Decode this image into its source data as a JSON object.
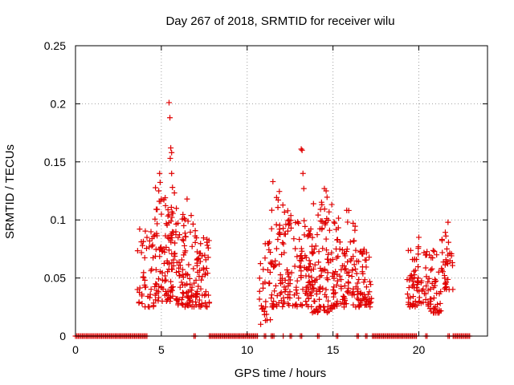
{
  "chart_data": {
    "type": "scatter",
    "title": "Day 267 of 2018, SRMTID for receiver wilu",
    "xlabel": "GPS time / hours",
    "ylabel": "SRMTID / TECUs",
    "xlim": [
      0,
      24
    ],
    "ylim": [
      0,
      0.25
    ],
    "xticks": [
      0,
      5,
      10,
      15,
      20
    ],
    "xtick_labels": [
      "0",
      "5",
      "10",
      "15",
      "20"
    ],
    "yticks": [
      0,
      0.05,
      0.1,
      0.15,
      0.2,
      0.25
    ],
    "ytick_labels": [
      "0",
      "0.05",
      "0.1",
      "0.15",
      "0.2",
      "0.25"
    ],
    "grid": true,
    "marker": "+",
    "series": [
      {
        "name": "SRMTID",
        "color": "#e00000",
        "clusters": [
          {
            "x_range": [
              3.6,
              4.6
            ],
            "y_range": [
              0.025,
              0.095
            ],
            "count": 45
          },
          {
            "x_range": [
              4.6,
              5.3
            ],
            "y_range": [
              0.03,
              0.135
            ],
            "count": 55
          },
          {
            "x_range": [
              5.3,
              5.9
            ],
            "y_range": [
              0.03,
              0.125
            ],
            "count": 60
          },
          {
            "x_range": [
              5.9,
              7.0
            ],
            "y_range": [
              0.025,
              0.105
            ],
            "count": 85
          },
          {
            "x_range": [
              7.0,
              7.8
            ],
            "y_range": [
              0.025,
              0.085
            ],
            "count": 60
          },
          {
            "x_range": [
              10.7,
              11.4
            ],
            "y_range": [
              0.01,
              0.09
            ],
            "count": 35
          },
          {
            "x_range": [
              11.4,
              12.6
            ],
            "y_range": [
              0.025,
              0.13
            ],
            "count": 85
          },
          {
            "x_range": [
              12.6,
              13.8
            ],
            "y_range": [
              0.025,
              0.1
            ],
            "count": 85
          },
          {
            "x_range": [
              13.8,
              15.0
            ],
            "y_range": [
              0.02,
              0.12
            ],
            "count": 95
          },
          {
            "x_range": [
              15.0,
              16.4
            ],
            "y_range": [
              0.025,
              0.11
            ],
            "count": 95
          },
          {
            "x_range": [
              16.4,
              17.3
            ],
            "y_range": [
              0.025,
              0.075
            ],
            "count": 55
          },
          {
            "x_range": [
              19.3,
              20.6
            ],
            "y_range": [
              0.025,
              0.08
            ],
            "count": 75
          },
          {
            "x_range": [
              20.6,
              21.3
            ],
            "y_range": [
              0.02,
              0.075
            ],
            "count": 40
          },
          {
            "x_range": [
              21.3,
              22.0
            ],
            "y_range": [
              0.04,
              0.1
            ],
            "count": 35
          }
        ],
        "outliers": [
          {
            "x": 5.45,
            "y": 0.201
          },
          {
            "x": 5.5,
            "y": 0.188
          },
          {
            "x": 5.55,
            "y": 0.162
          },
          {
            "x": 5.6,
            "y": 0.158
          },
          {
            "x": 5.52,
            "y": 0.153
          },
          {
            "x": 4.9,
            "y": 0.14
          },
          {
            "x": 4.85,
            "y": 0.125
          },
          {
            "x": 5.0,
            "y": 0.118
          },
          {
            "x": 5.6,
            "y": 0.14
          },
          {
            "x": 5.65,
            "y": 0.128
          },
          {
            "x": 6.5,
            "y": 0.118
          },
          {
            "x": 11.5,
            "y": 0.133
          },
          {
            "x": 13.15,
            "y": 0.161
          },
          {
            "x": 13.2,
            "y": 0.16
          },
          {
            "x": 13.25,
            "y": 0.14
          },
          {
            "x": 13.3,
            "y": 0.127
          },
          {
            "x": 14.5,
            "y": 0.127
          },
          {
            "x": 14.6,
            "y": 0.125
          },
          {
            "x": 20.0,
            "y": 0.085
          },
          {
            "x": 21.7,
            "y": 0.098
          }
        ],
        "zero_spans": [
          [
            0.0,
            4.2
          ],
          [
            6.9,
            7.0
          ],
          [
            7.8,
            10.6
          ],
          [
            11.0,
            11.1
          ],
          [
            11.4,
            11.6
          ],
          [
            12.1,
            12.15
          ],
          [
            12.5,
            12.6
          ],
          [
            13.1,
            13.2
          ],
          [
            14.1,
            14.2
          ],
          [
            15.2,
            15.3
          ],
          [
            16.4,
            16.5
          ],
          [
            16.9,
            17.0
          ],
          [
            17.3,
            19.9
          ],
          [
            20.4,
            20.5
          ],
          [
            21.7,
            21.8
          ],
          [
            22.0,
            23.0
          ]
        ]
      }
    ]
  }
}
